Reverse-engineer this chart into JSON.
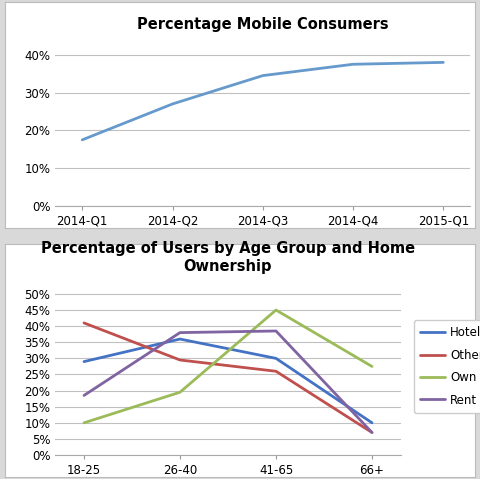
{
  "chart1": {
    "title": "Percentage Mobile Consumers",
    "x_labels": [
      "2014-Q1",
      "2014-Q2",
      "2014-Q3",
      "2014-Q4",
      "2015-Q1"
    ],
    "y_values": [
      0.175,
      0.27,
      0.345,
      0.375,
      0.38
    ],
    "line_color": "#6699CC",
    "ylim": [
      0,
      0.45
    ],
    "yticks": [
      0.0,
      0.1,
      0.2,
      0.3,
      0.4
    ],
    "ytick_labels": [
      "0%",
      "10%",
      "20%",
      "30%",
      "40%"
    ]
  },
  "chart2": {
    "title": "Percentage of Users by Age Group and Home\nOwnership",
    "x_labels": [
      "18-25",
      "26-40",
      "41-65",
      "66+"
    ],
    "series": {
      "HotelMotel": {
        "values": [
          0.29,
          0.36,
          0.3,
          0.1
        ],
        "color": "#4472C4"
      },
      "Other": {
        "values": [
          0.41,
          0.295,
          0.26,
          0.07
        ],
        "color": "#C0504D"
      },
      "Own": {
        "values": [
          0.1,
          0.195,
          0.45,
          0.275
        ],
        "color": "#9BBB59"
      },
      "Rent": {
        "values": [
          0.185,
          0.38,
          0.385,
          0.07
        ],
        "color": "#8064A2"
      }
    },
    "ylim": [
      0,
      0.55
    ],
    "yticks": [
      0.0,
      0.05,
      0.1,
      0.15,
      0.2,
      0.25,
      0.3,
      0.35,
      0.4,
      0.45,
      0.5
    ],
    "ytick_labels": [
      "0%",
      "5%",
      "10%",
      "15%",
      "20%",
      "25%",
      "30%",
      "35%",
      "40%",
      "45%",
      "50%"
    ]
  },
  "bg_color": "#D9D9D9",
  "panel_color": "#FFFFFF",
  "title_fontsize": 10.5,
  "label_fontsize": 8.5,
  "legend_fontsize": 8.5,
  "grid_color": "#C0C0C0",
  "spine_color": "#AAAAAA"
}
